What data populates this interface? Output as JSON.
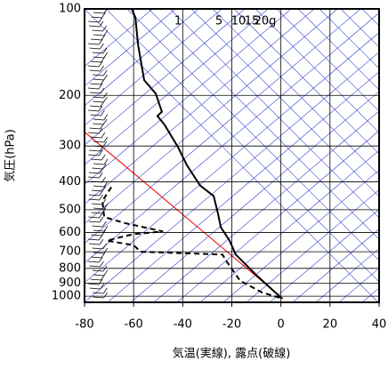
{
  "chart_data": {
    "type": "line",
    "xlabel": "気温(実線), 露点(破線)",
    "ylabel": "気圧(hPa)",
    "xlim": [
      -80,
      40
    ],
    "xticks": [
      -80,
      -60,
      -40,
      -20,
      0,
      20,
      40
    ],
    "ylim": [
      100,
      1050
    ],
    "yticks": [
      100,
      200,
      300,
      400,
      500,
      600,
      700,
      800,
      900,
      1000
    ],
    "log_y": true,
    "grid": true,
    "mixing_ratio_labels": [
      "1",
      "5",
      "10",
      "15",
      "20g"
    ],
    "series": [
      {
        "color": "#000000",
        "dash": false,
        "x": [
          -60.8,
          -59.3,
          -58.2,
          -55.7,
          -51,
          -48.5,
          -50.3,
          -47.4,
          -41.9,
          -38.3,
          -32.9,
          -27.4,
          -25.6,
          -24.5,
          -20.9,
          -18.4,
          -9.3,
          0.5
        ],
        "values": [
          100,
          107,
          133,
          177,
          197,
          228,
          236,
          253,
          303,
          350,
          412,
          448,
          518,
          575,
          641,
          716,
          856,
          1020
        ]
      },
      {
        "color": "#000000",
        "dash": true,
        "x": [
          -69.1,
          -72.7,
          -72,
          -63.7,
          -48.1,
          -60,
          -66,
          -70.9,
          -60,
          -57.2,
          -23.8,
          -22,
          -16.6,
          -7.5,
          0.8
        ],
        "values": [
          417,
          466,
          530,
          556,
          595,
          608,
          625,
          641,
          664,
          700,
          716,
          760,
          884,
          972,
          1020
        ]
      }
    ]
  }
}
